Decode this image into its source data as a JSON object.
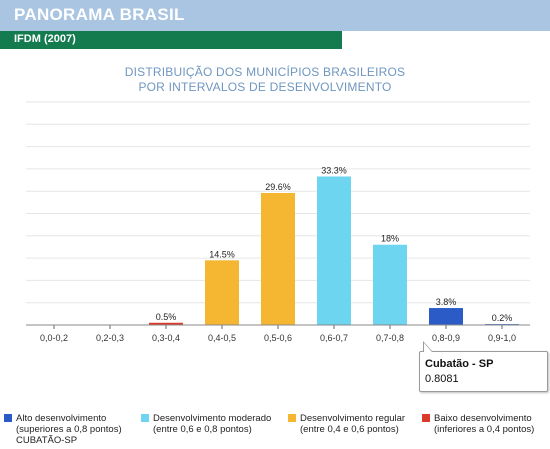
{
  "header": {
    "title": "PANORAMA BRASIL",
    "subtitle": "IFDM (2007)"
  },
  "chart_data": {
    "type": "bar",
    "title_lines": [
      "DISTRIBUIÇÃO DOS MUNICÍPIOS BRASILEIROS",
      "POR INTERVALOS DE DESENVOLVIMENTO"
    ],
    "categories": [
      "0,0-0,2",
      "0,2-0,3",
      "0,3-0,4",
      "0,4-0,5",
      "0,5-0,6",
      "0,6-0,7",
      "0,7-0,8",
      "0,8-0,9",
      "0,9-1,0"
    ],
    "values": [
      0,
      0,
      0.5,
      14.5,
      29.6,
      33.3,
      18,
      3.8,
      0.2
    ],
    "data_labels": [
      "",
      "",
      "0.5%",
      "14.5%",
      "29.6%",
      "33.3%",
      "18%",
      "3.8%",
      "0.2%"
    ],
    "colors": [
      "#d93a2b",
      "#d93a2b",
      "#d93a2b",
      "#f5b731",
      "#f5b731",
      "#6dd5f0",
      "#6dd5f0",
      "#2a5bc7",
      "#2a5bc7"
    ],
    "ylim": [
      0,
      50
    ],
    "grid": true,
    "legend_placement": "bottom"
  },
  "legend": [
    {
      "name": "Alto desenvolvimento",
      "desc": "(superiores a 0,8 pontos)",
      "color": "#2a5bc7"
    },
    {
      "name": "Desenvolvimento moderado",
      "desc": "(entre 0,6 e 0,8 pontos)",
      "color": "#6dd5f0"
    },
    {
      "name": "Desenvolvimento regular",
      "desc": "(entre 0,4 e 0,6 pontos)",
      "color": "#f5b731"
    },
    {
      "name": "Baixo desenvolvimento",
      "desc": "(inferiores a 0,4 pontos)",
      "color": "#d93a2b"
    }
  ],
  "selected_city": "CUBATÃO-SP",
  "tooltip": {
    "name": "Cubatão - SP",
    "value": "0.8081"
  }
}
